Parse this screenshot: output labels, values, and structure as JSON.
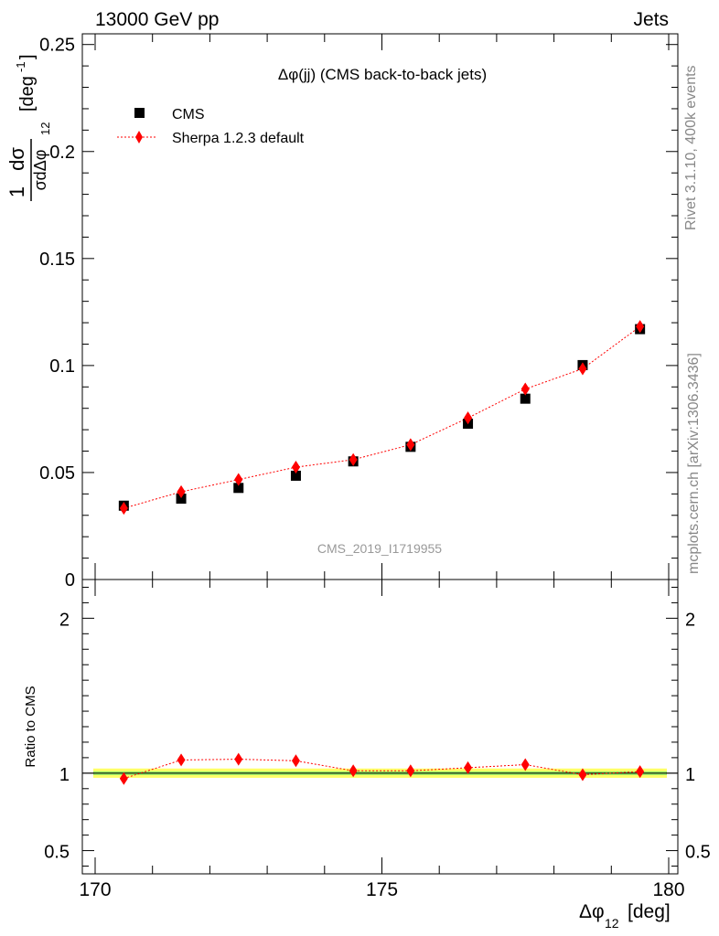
{
  "header": {
    "left": "13000 GeV pp",
    "right": "Jets"
  },
  "side_text": {
    "top": "Rivet 3.1.10,  400k events",
    "bottom": "mcplots.cern.ch [arXiv:1306.3436]"
  },
  "colors": {
    "cms": "#000000",
    "mc": "#ff0000",
    "band_outer": "#ffff66",
    "band_inner": "#99ee66"
  },
  "chart_data": {
    "type": "scatter",
    "title": "Δφ(jj) (CMS back-to-back jets)",
    "analysis_label": "CMS_2019_I1719955",
    "xlabel": "Δφ",
    "xlabel_sub": "12",
    "xlabel_unit": "[deg]",
    "ylabel_main": "1 dσ / σ dΔφ12 [deg-1]",
    "ylabel_ratio": "Ratio to CMS",
    "xlim": [
      170,
      180
    ],
    "ylim_main": [
      0,
      0.255
    ],
    "ylim_ratio": [
      0.35,
      2.25
    ],
    "x_ticks": [
      "170",
      "175",
      "180"
    ],
    "y_ticks_main": [
      "0",
      "0.05",
      "0.1",
      "0.15",
      "0.2",
      "0.25"
    ],
    "y_ticks_ratio": [
      "0.5",
      "1",
      "2"
    ],
    "legend": [
      "CMS",
      "Sherpa 1.2.3 default"
    ],
    "x": [
      170.5,
      171.5,
      172.5,
      173.5,
      174.5,
      175.5,
      176.5,
      177.5,
      178.5,
      179.5
    ],
    "series": [
      {
        "name": "CMS",
        "values": [
          0.0345,
          0.0378,
          0.0428,
          0.0485,
          0.0552,
          0.062,
          0.0728,
          0.0845,
          0.1002,
          0.117
        ]
      },
      {
        "name": "Sherpa 1.2.3 default",
        "values": [
          0.0333,
          0.041,
          0.0467,
          0.0525,
          0.056,
          0.063,
          0.0755,
          0.089,
          0.0985,
          0.1182
        ],
        "errors": [
          0.0012,
          0.0012,
          0.0012,
          0.0013,
          0.0013,
          0.0013,
          0.0015,
          0.0016,
          0.0018,
          0.0018
        ]
      }
    ],
    "ratio": {
      "values": [
        0.965,
        1.085,
        1.09,
        1.08,
        1.015,
        1.015,
        1.035,
        1.055,
        0.99,
        1.01
      ],
      "errors": [
        0.035,
        0.03,
        0.03,
        0.028,
        0.025,
        0.025,
        0.024,
        0.02,
        0.018,
        0.018
      ],
      "band_outer": 0.03,
      "band_inner": 0.012
    }
  }
}
